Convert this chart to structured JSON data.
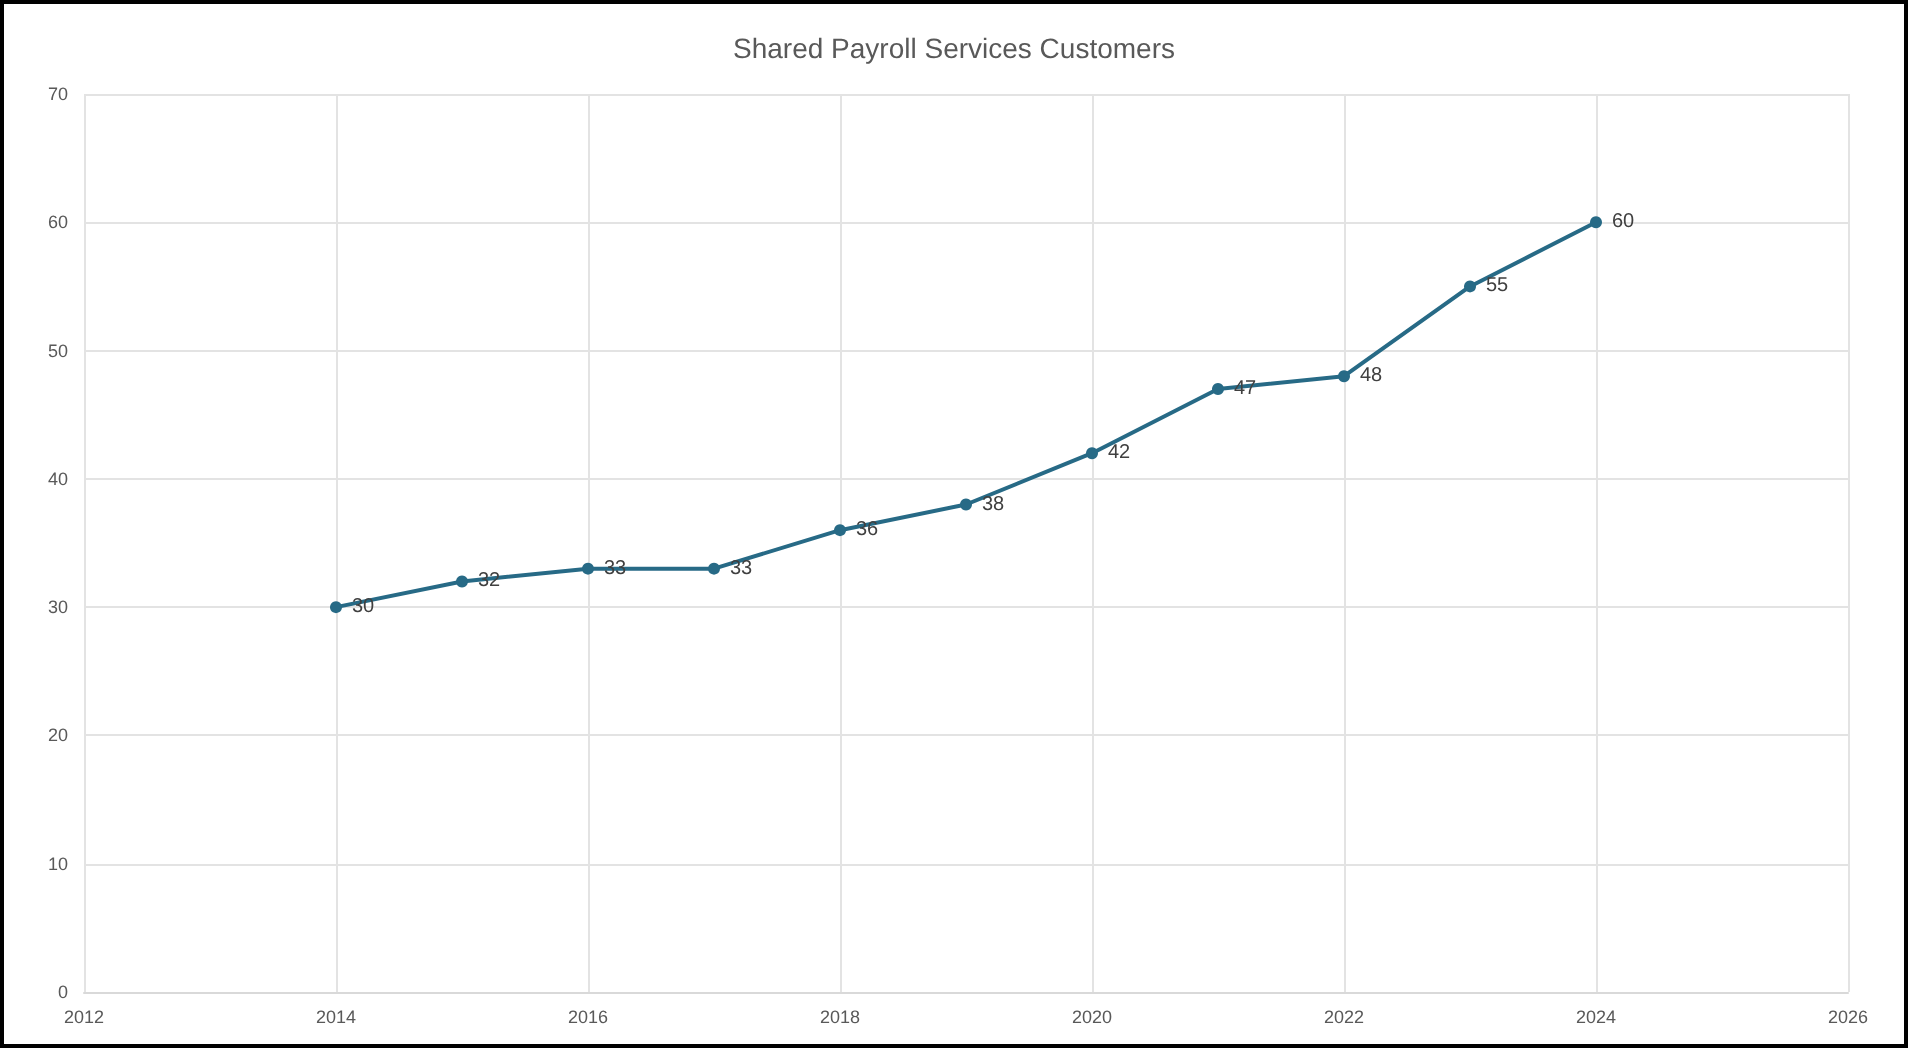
{
  "chart_data": {
    "type": "line",
    "title": "Shared Payroll Services Customers",
    "x": [
      2014,
      2015,
      2016,
      2017,
      2018,
      2019,
      2020,
      2021,
      2022,
      2023,
      2024
    ],
    "series": [
      {
        "color": "#276a86",
        "values": [
          30,
          32,
          33,
          33,
          36,
          38,
          42,
          47,
          48,
          55,
          60
        ]
      }
    ],
    "xlim": [
      2012,
      2026
    ],
    "xticks": [
      2012,
      2014,
      2016,
      2018,
      2020,
      2022,
      2024,
      2026
    ],
    "ylim": [
      0,
      70
    ],
    "yticks": [
      0,
      10,
      20,
      30,
      40,
      50,
      60,
      70
    ],
    "grid": true,
    "marker": "circle",
    "line_style": "solid",
    "data_labels": true
  }
}
